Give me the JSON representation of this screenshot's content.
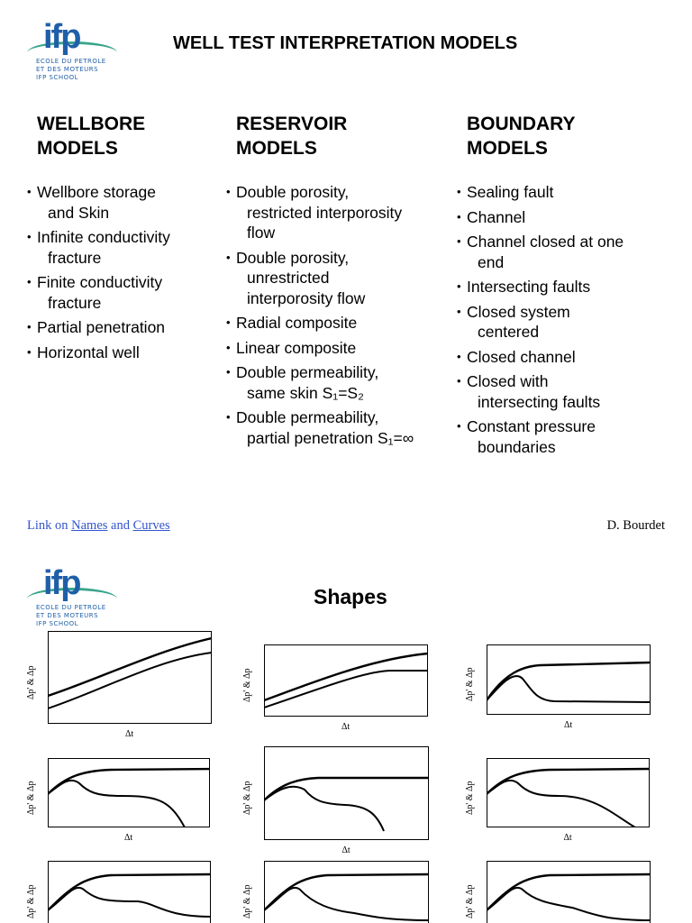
{
  "logo": {
    "mark": "ifp",
    "lines": [
      "ECOLE DU PETROLE",
      "ET DES MOTEURS",
      "IFP SCHOOL"
    ]
  },
  "slide1": {
    "title": "WELL TEST INTERPRETATION MODELS",
    "columns": [
      {
        "heading": [
          "WELLBORE",
          "MODELS"
        ],
        "bullets": [
          [
            "Wellbore storage",
            "and Skin"
          ],
          [
            "Infinite conductivity",
            "fracture"
          ],
          [
            "Finite conductivity",
            "fracture"
          ],
          [
            "Partial penetration"
          ],
          [
            "Horizontal well"
          ]
        ]
      },
      {
        "heading": [
          "RESERVOIR",
          "MODELS"
        ],
        "bullets": [
          [
            "Double porosity,",
            "restricted interporosity",
            "flow"
          ],
          [
            "Double porosity,",
            "unrestricted",
            "interporosity flow"
          ],
          [
            "Radial composite"
          ],
          [
            "Linear composite"
          ],
          [
            "Double permeability,",
            "same skin S₁=S₂"
          ],
          [
            "Double permeability,",
            "partial penetration S₁=∞"
          ]
        ]
      },
      {
        "heading": [
          "BOUNDARY",
          "MODELS"
        ],
        "bullets": [
          [
            "Sealing fault"
          ],
          [
            "Channel"
          ],
          [
            "Channel closed at one",
            "end"
          ],
          [
            "Intersecting faults"
          ],
          [
            "Closed system",
            "centered"
          ],
          [
            "Closed channel"
          ],
          [
            "Closed with",
            "intersecting faults"
          ],
          [
            "Constant pressure",
            "boundaries"
          ]
        ]
      }
    ],
    "footer": {
      "prefix": "Link on",
      "names": "Names",
      "and": "and",
      "curves": "Curves",
      "author": "D. Bourdet"
    }
  },
  "slide2": {
    "title": "Shapes",
    "plots": [
      {
        "ylabel": "Δp' & Δp",
        "xlabel": "Δt"
      },
      {
        "ylabel": "Δp' & Δp",
        "xlabel": "Δt"
      },
      {
        "ylabel": "Δp' & Δp",
        "xlabel": "Δt"
      },
      {
        "ylabel": "Δp' & Δp",
        "xlabel": "Δt"
      },
      {
        "ylabel": "Δp' & Δp",
        "xlabel": "Δt"
      },
      {
        "ylabel": "Δp' & Δp",
        "xlabel": "Δt"
      },
      {
        "ylabel": "Δp' & Δp"
      },
      {
        "ylabel": "Δp' & Δp"
      },
      {
        "ylabel": "Δp' & Δp"
      }
    ]
  }
}
